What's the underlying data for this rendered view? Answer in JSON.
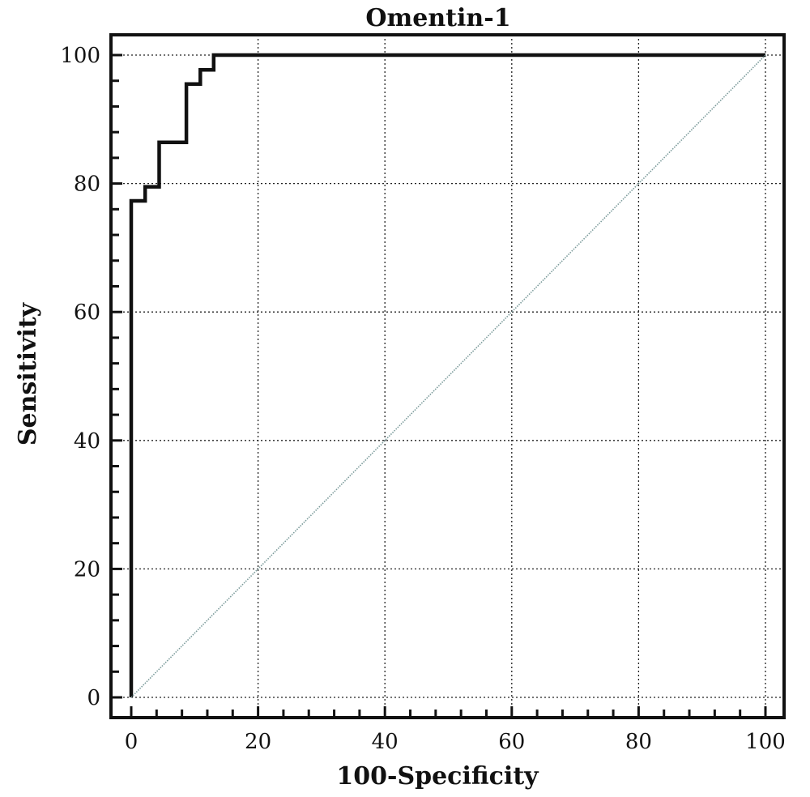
{
  "chart_data": {
    "type": "line",
    "title": "Omentin-1",
    "xlabel": "100-Specificity",
    "ylabel": "Sensitivity",
    "xlim": [
      0,
      100
    ],
    "ylim": [
      0,
      100
    ],
    "x_ticks": [
      0,
      20,
      40,
      60,
      80,
      100
    ],
    "y_ticks": [
      0,
      20,
      40,
      60,
      80,
      100
    ],
    "x_tick_labels": [
      "0",
      "20",
      "40",
      "60",
      "80",
      "100"
    ],
    "y_tick_labels": [
      "0",
      "20",
      "40",
      "60",
      "80",
      "100"
    ],
    "grid": true,
    "series": [
      {
        "style": "roc-step",
        "color": "#111111",
        "x": [
          0,
          0,
          2.2,
          2.2,
          4.4,
          4.4,
          8.7,
          8.7,
          10.9,
          10.9,
          13.0,
          13.0,
          100
        ],
        "y": [
          0,
          77.3,
          77.3,
          79.5,
          79.5,
          86.4,
          86.4,
          95.5,
          95.5,
          97.7,
          97.7,
          100,
          100
        ]
      },
      {
        "style": "reference-diagonal",
        "color": "#7a9a9a",
        "x": [
          0,
          100
        ],
        "y": [
          0,
          100
        ]
      }
    ]
  }
}
